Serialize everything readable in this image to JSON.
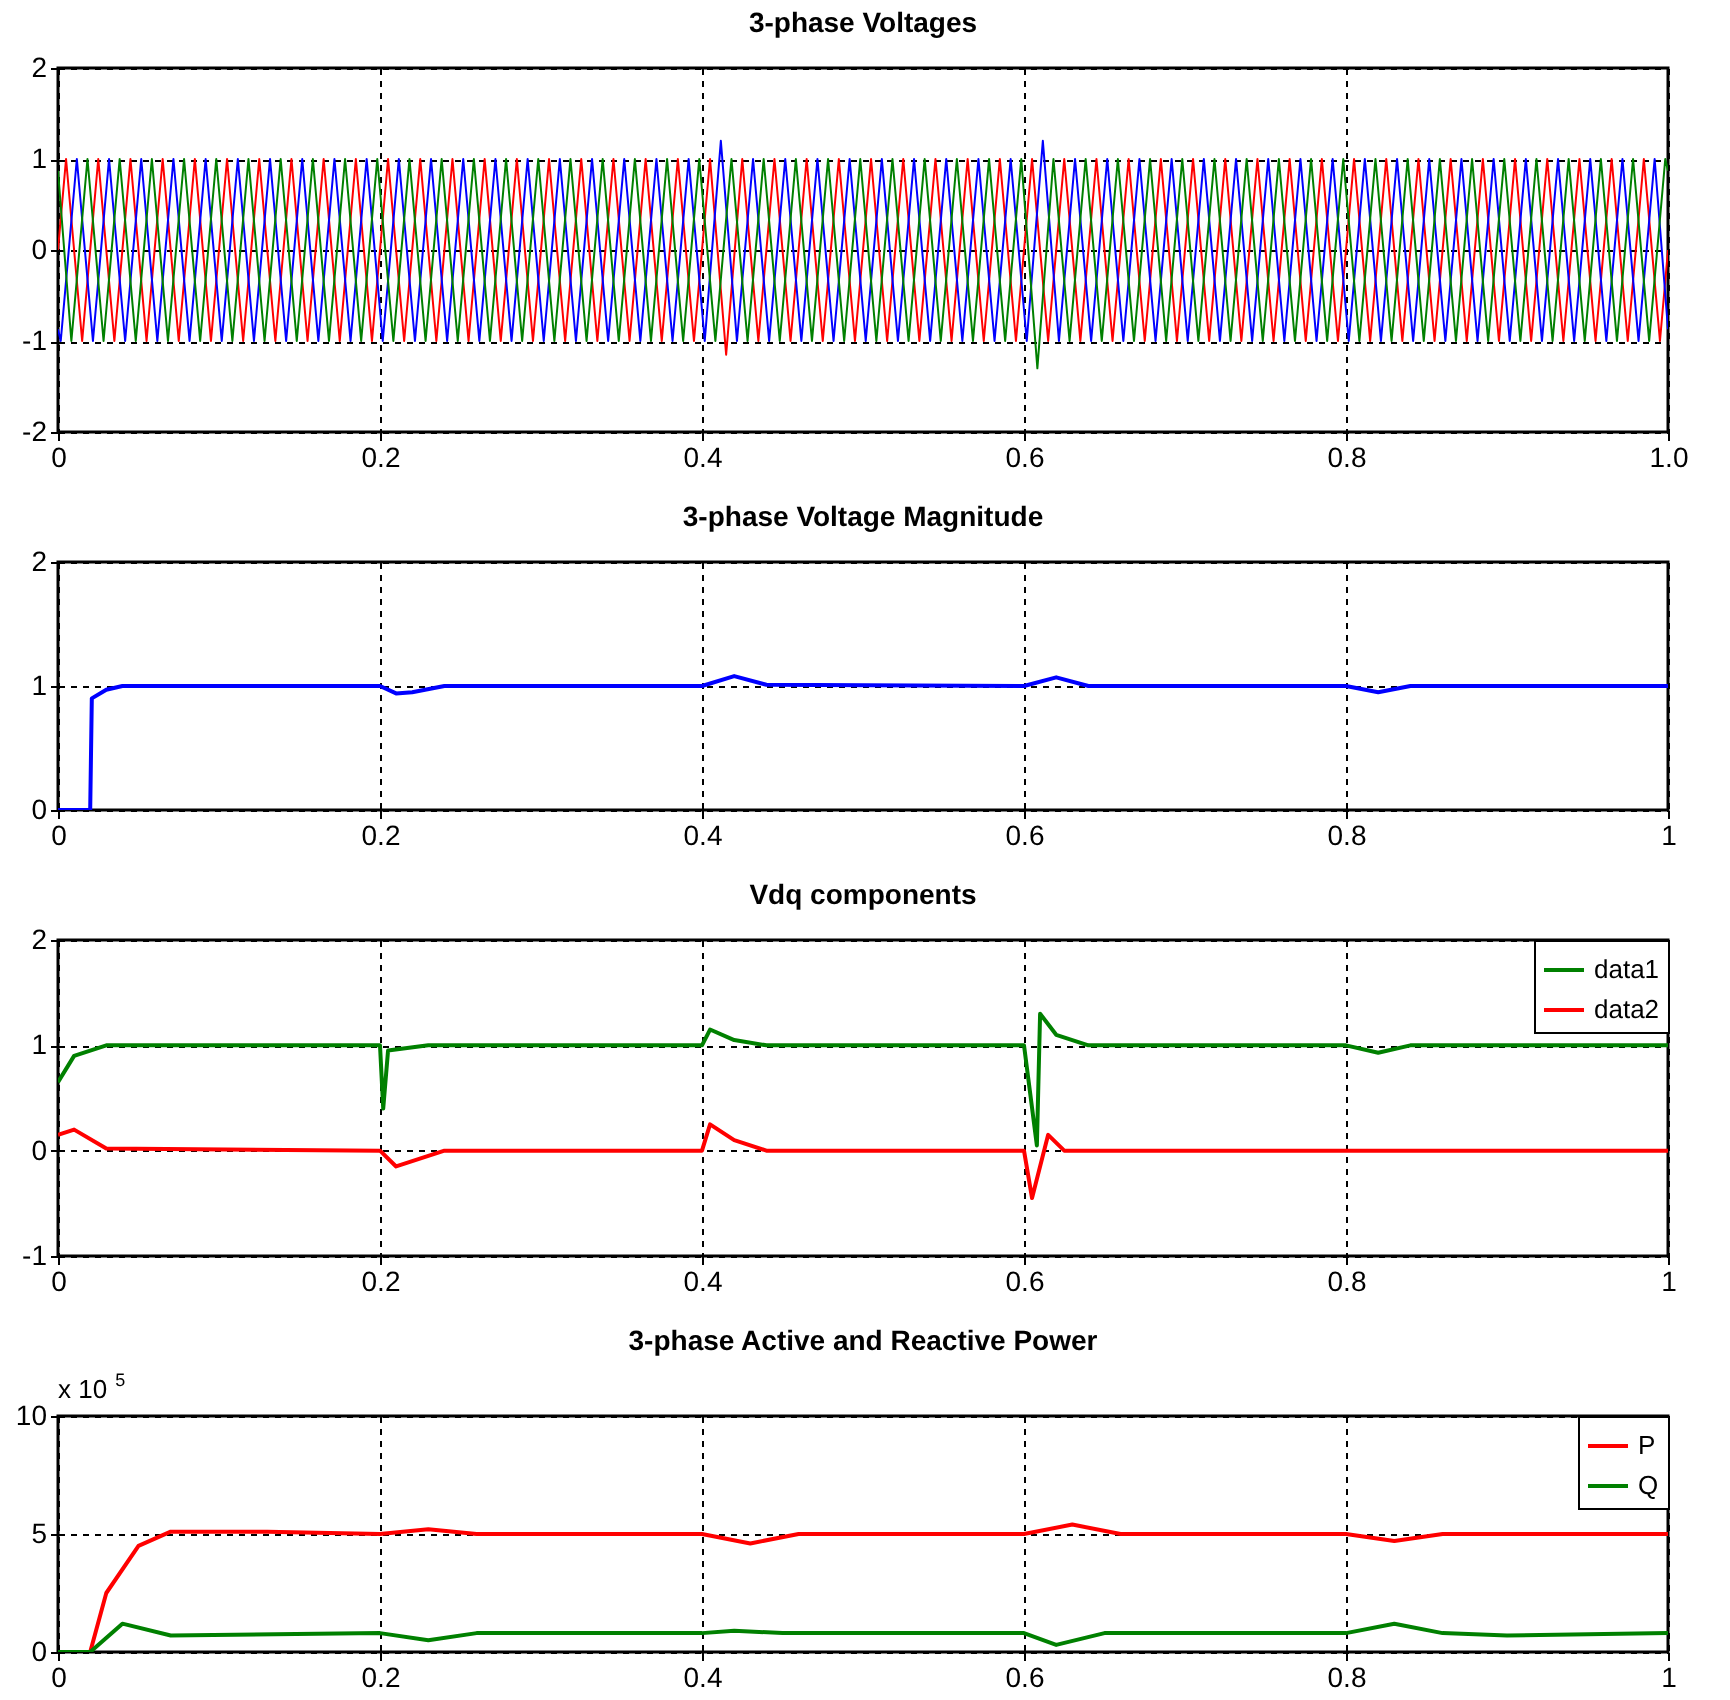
{
  "chart_data": [
    {
      "type": "line",
      "title": "3-phase Voltages",
      "xlim": [
        0,
        1
      ],
      "xticks": [
        0,
        0.2,
        0.4,
        0.6,
        0.8,
        {
          "value": 1,
          "label": "1.0"
        }
      ],
      "ylim": [
        -2,
        2
      ],
      "yticks": [
        -2,
        -1,
        0,
        1,
        2
      ],
      "grid": true,
      "series": [
        {
          "color": "#ff0000",
          "x": [
            0,
            0.005,
            0.015,
            0.025,
            0.035,
            0.045,
            0.055,
            0.065,
            0.075,
            0.085,
            0.095,
            0.105,
            0.115,
            0.125,
            0.135,
            0.145,
            0.155,
            0.165,
            0.175,
            0.185,
            0.195,
            0.205,
            0.215,
            0.225,
            0.235,
            0.245,
            0.255,
            0.265,
            0.275,
            0.285,
            0.295,
            0.305,
            0.315,
            0.325,
            0.335,
            0.345,
            0.355,
            0.365,
            0.375,
            0.385,
            0.395,
            0.405,
            0.415,
            0.425,
            0.435,
            0.445,
            0.455,
            0.465,
            0.475,
            0.485,
            0.495,
            0.505,
            0.515,
            0.525,
            0.535,
            0.545,
            0.555,
            0.565,
            0.575,
            0.585,
            0.595,
            0.605,
            0.615,
            0.625,
            0.635,
            0.645,
            0.655,
            0.665,
            0.675,
            0.685,
            0.695,
            0.705,
            0.715,
            0.725,
            0.735,
            0.745,
            0.755,
            0.765,
            0.775,
            0.785,
            0.795,
            0.805,
            0.815,
            0.825,
            0.835,
            0.845,
            0.855,
            0.865,
            0.875,
            0.885,
            0.895,
            0.905,
            0.915,
            0.925,
            0.935,
            0.945,
            0.955,
            0.965,
            0.975,
            0.985,
            0.995,
            1
          ],
          "values": [
            0,
            1,
            -1,
            1,
            -1,
            1,
            -1,
            1,
            -1,
            1,
            -1,
            1,
            -1,
            1,
            -1,
            1,
            -1,
            1,
            -1,
            1,
            -1,
            1,
            -1,
            1,
            -1,
            1,
            -1,
            1,
            -1,
            1,
            -1,
            1,
            -1,
            1,
            -1,
            1,
            -1,
            1,
            -1,
            1,
            -1,
            1,
            -1.15,
            1,
            -1,
            1,
            -1,
            1,
            -1,
            1,
            -1,
            1,
            -1,
            1,
            -1,
            1,
            -1,
            1,
            -1,
            1,
            -1,
            1,
            -1,
            1,
            -1,
            1,
            -1,
            1,
            -1,
            1,
            -1,
            1,
            -1,
            1,
            -1,
            1,
            -1,
            1,
            -1,
            1,
            -1,
            1,
            -1,
            1,
            -1,
            1,
            -1,
            1,
            -1,
            1,
            -1,
            1,
            -1,
            1,
            -1,
            1,
            -1,
            1,
            -1,
            1,
            -1,
            0
          ]
        },
        {
          "color": "#0000ff",
          "x": [
            0,
            0.0017,
            0.0117,
            0.0217,
            0.0317,
            0.0417,
            0.0517,
            0.0617,
            0.0717,
            0.0817,
            0.0917,
            0.1017,
            0.1117,
            0.1217,
            0.1317,
            0.1417,
            0.1517,
            0.1617,
            0.1717,
            0.1817,
            0.1917,
            0.2017,
            0.2117,
            0.2217,
            0.2317,
            0.2417,
            0.2517,
            0.2617,
            0.2717,
            0.2817,
            0.2917,
            0.3017,
            0.3117,
            0.3217,
            0.3317,
            0.3417,
            0.3517,
            0.3617,
            0.3717,
            0.3817,
            0.3917,
            0.4017,
            0.4117,
            0.4217,
            0.4317,
            0.4417,
            0.4517,
            0.4617,
            0.4717,
            0.4817,
            0.4917,
            0.5017,
            0.5117,
            0.5217,
            0.5317,
            0.5417,
            0.5517,
            0.5617,
            0.5717,
            0.5817,
            0.5917,
            0.6017,
            0.6117,
            0.6217,
            0.6317,
            0.6417,
            0.6517,
            0.6617,
            0.6717,
            0.6817,
            0.6917,
            0.7017,
            0.7117,
            0.7217,
            0.7317,
            0.7417,
            0.7517,
            0.7617,
            0.7717,
            0.7817,
            0.7917,
            0.8017,
            0.8117,
            0.8217,
            0.8317,
            0.8417,
            0.8517,
            0.8617,
            0.8717,
            0.8817,
            0.8917,
            0.9017,
            0.9117,
            0.9217,
            0.9317,
            0.9417,
            0.9517,
            0.9617,
            0.9717,
            0.9817,
            0.9917,
            1
          ],
          "values": [
            -0.87,
            -1,
            1,
            -1,
            1,
            -1,
            1,
            -1,
            1,
            -1,
            1,
            -1,
            1,
            -1,
            1,
            -1,
            1,
            -1,
            1,
            -1,
            1,
            -1,
            1,
            -1,
            1,
            -1,
            1,
            -1,
            1,
            -1,
            1,
            -1,
            1,
            -1,
            1,
            -1,
            1,
            -1,
            1,
            -1,
            1,
            -1,
            1.2,
            -1,
            1,
            -1,
            1,
            -1,
            1,
            -1,
            1,
            -1,
            1,
            -1,
            1,
            -1,
            1,
            -1,
            1,
            -1,
            1,
            -1,
            1.2,
            -1,
            1,
            -1,
            1,
            -1,
            1,
            -1,
            1,
            -1,
            1,
            -1,
            1,
            -1,
            1,
            -1,
            1,
            -1,
            1,
            -1,
            1,
            -1,
            1,
            -1,
            1,
            -1,
            1,
            -1,
            1,
            -1,
            1,
            -1,
            1,
            -1,
            1,
            -1,
            1,
            -1,
            1,
            -0.87
          ]
        },
        {
          "color": "#008000",
          "x": [
            0,
            0.0083,
            0.0183,
            0.0283,
            0.0383,
            0.0483,
            0.0583,
            0.0683,
            0.0783,
            0.0883,
            0.0983,
            0.1083,
            0.1183,
            0.1283,
            0.1383,
            0.1483,
            0.1583,
            0.1683,
            0.1783,
            0.1883,
            0.1983,
            0.2083,
            0.2183,
            0.2283,
            0.2383,
            0.2483,
            0.2583,
            0.2683,
            0.2783,
            0.2883,
            0.2983,
            0.3083,
            0.3183,
            0.3283,
            0.3383,
            0.3483,
            0.3583,
            0.3683,
            0.3783,
            0.3883,
            0.3983,
            0.4083,
            0.4183,
            0.4283,
            0.4383,
            0.4483,
            0.4583,
            0.4683,
            0.4783,
            0.4883,
            0.4983,
            0.5083,
            0.5183,
            0.5283,
            0.5383,
            0.5483,
            0.5583,
            0.5683,
            0.5783,
            0.5883,
            0.5983,
            0.6083,
            0.6183,
            0.6283,
            0.6383,
            0.6483,
            0.6583,
            0.6683,
            0.6783,
            0.6883,
            0.6983,
            0.7083,
            0.7183,
            0.7283,
            0.7383,
            0.7483,
            0.7583,
            0.7683,
            0.7783,
            0.7883,
            0.7983,
            0.8083,
            0.8183,
            0.8283,
            0.8383,
            0.8483,
            0.8583,
            0.8683,
            0.8783,
            0.8883,
            0.8983,
            0.9083,
            0.9183,
            0.9283,
            0.9383,
            0.9483,
            0.9583,
            0.9683,
            0.9783,
            0.9883,
            0.9983,
            1
          ],
          "values": [
            0.87,
            -1,
            1,
            -1,
            1,
            -1,
            1,
            -1,
            1,
            -1,
            1,
            -1,
            1,
            -1,
            1,
            -1,
            1,
            -1,
            1,
            -1,
            1,
            -1,
            1,
            -1,
            1,
            -1,
            1,
            -1,
            1,
            -1,
            1,
            -1,
            1,
            -1,
            1,
            -1,
            1,
            -1,
            1,
            -1,
            1,
            -1,
            1,
            -1,
            1,
            -1,
            1,
            -1,
            1,
            -1,
            1,
            -1,
            1,
            -1,
            1,
            -1,
            1,
            -1,
            1,
            -1,
            1,
            -1.3,
            1,
            -1,
            1,
            -1,
            1,
            -1,
            1,
            -1,
            1,
            -1,
            1,
            -1,
            1,
            -1,
            1,
            -1,
            1,
            -1,
            1,
            -1,
            1,
            -1,
            1,
            -1,
            1,
            -1,
            1,
            -1,
            1,
            -1,
            1,
            -1,
            1,
            -1,
            1,
            -1,
            1,
            -1,
            1,
            0.87
          ]
        }
      ]
    },
    {
      "type": "line",
      "title": "3-phase Voltage Magnitude",
      "xlim": [
        0,
        1
      ],
      "xticks": [
        0,
        0.2,
        0.4,
        0.6,
        0.8,
        1
      ],
      "ylim": [
        0,
        2
      ],
      "yticks": [
        0,
        1,
        2
      ],
      "grid": true,
      "series": [
        {
          "color": "#0000ff",
          "x": [
            0,
            0.02,
            0.021,
            0.03,
            0.04,
            0.2,
            0.21,
            0.22,
            0.24,
            0.4,
            0.42,
            0.44,
            0.6,
            0.62,
            0.64,
            0.8,
            0.82,
            0.84,
            1
          ],
          "values": [
            0,
            0,
            0.9,
            0.97,
            1,
            1,
            0.94,
            0.95,
            1,
            1,
            1.08,
            1.01,
            1,
            1.07,
            1,
            1,
            0.95,
            1,
            1
          ]
        }
      ]
    },
    {
      "type": "line",
      "title": "Vdq components",
      "xlim": [
        0,
        1
      ],
      "xticks": [
        0,
        0.2,
        0.4,
        0.6,
        0.8,
        1
      ],
      "ylim": [
        -1,
        2
      ],
      "yticks": [
        -1,
        0,
        1,
        2
      ],
      "grid": true,
      "legend": "top right",
      "series": [
        {
          "name": "data1",
          "color": "#008000",
          "x": [
            0,
            0.01,
            0.03,
            0.2,
            0.202,
            0.205,
            0.23,
            0.4,
            0.405,
            0.42,
            0.44,
            0.6,
            0.608,
            0.61,
            0.62,
            0.64,
            0.8,
            0.82,
            0.84,
            1
          ],
          "values": [
            0.65,
            0.9,
            1,
            1,
            0.4,
            0.95,
            1,
            1,
            1.15,
            1.05,
            1,
            1,
            0.05,
            1.3,
            1.1,
            1,
            1,
            0.93,
            1,
            1
          ]
        },
        {
          "name": "data2",
          "color": "#ff0000",
          "x": [
            0,
            0.01,
            0.03,
            0.2,
            0.21,
            0.24,
            0.4,
            0.405,
            0.42,
            0.44,
            0.6,
            0.605,
            0.615,
            0.625,
            1
          ],
          "values": [
            0.15,
            0.2,
            0.02,
            0,
            -0.15,
            0,
            0,
            0.25,
            0.1,
            0,
            0,
            -0.45,
            0.15,
            0,
            0
          ]
        }
      ]
    },
    {
      "type": "line",
      "title": "3-phase Active and Reactive Power",
      "annotations": [
        "x 10$^{5}$"
      ],
      "xlim": [
        0,
        1
      ],
      "xticks": [
        0,
        0.2,
        0.4,
        0.6,
        0.8,
        1
      ],
      "ylim": [
        0,
        10
      ],
      "yticks": [
        0,
        5,
        10
      ],
      "grid": true,
      "legend": "top right",
      "series": [
        {
          "name": "P",
          "color": "#ff0000",
          "x": [
            0,
            0.02,
            0.03,
            0.05,
            0.07,
            0.13,
            0.2,
            0.23,
            0.26,
            0.4,
            0.43,
            0.46,
            0.6,
            0.63,
            0.66,
            0.8,
            0.83,
            0.86,
            1
          ],
          "values": [
            0,
            0,
            2.5,
            4.5,
            5.1,
            5.1,
            5,
            5.2,
            5,
            5,
            4.6,
            5,
            5,
            5.4,
            5,
            5,
            4.7,
            5,
            5
          ]
        },
        {
          "name": "Q",
          "color": "#008000",
          "x": [
            0,
            0.02,
            0.04,
            0.07,
            0.2,
            0.23,
            0.26,
            0.4,
            0.42,
            0.45,
            0.6,
            0.62,
            0.65,
            0.8,
            0.83,
            0.86,
            0.9,
            1
          ],
          "values": [
            0,
            0,
            1.2,
            0.7,
            0.8,
            0.5,
            0.8,
            0.8,
            0.9,
            0.8,
            0.8,
            0.3,
            0.8,
            0.8,
            1.2,
            0.8,
            0.7,
            0.8
          ]
        }
      ]
    }
  ]
}
